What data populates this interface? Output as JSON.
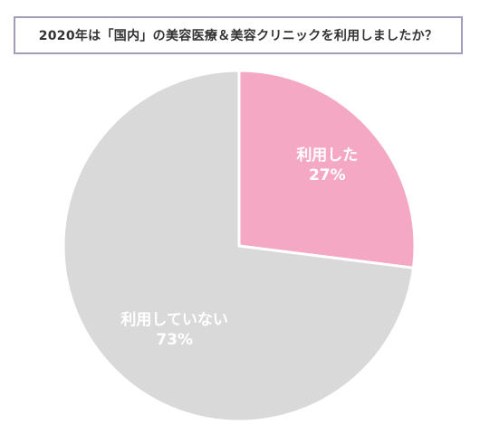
{
  "chart_data": {
    "type": "pie",
    "title": "2020年は「国内」の美容医療＆美容クリニックを利用しましたか？",
    "slices": [
      {
        "label": "利用した",
        "value": 27,
        "value_label": "27%",
        "color": "#f4a8c4"
      },
      {
        "label": "利用していない",
        "value": 73,
        "value_label": "73%",
        "color": "#d9d9d9"
      }
    ],
    "start_angle_deg": 0,
    "direction": "clockwise",
    "legend": "none"
  }
}
